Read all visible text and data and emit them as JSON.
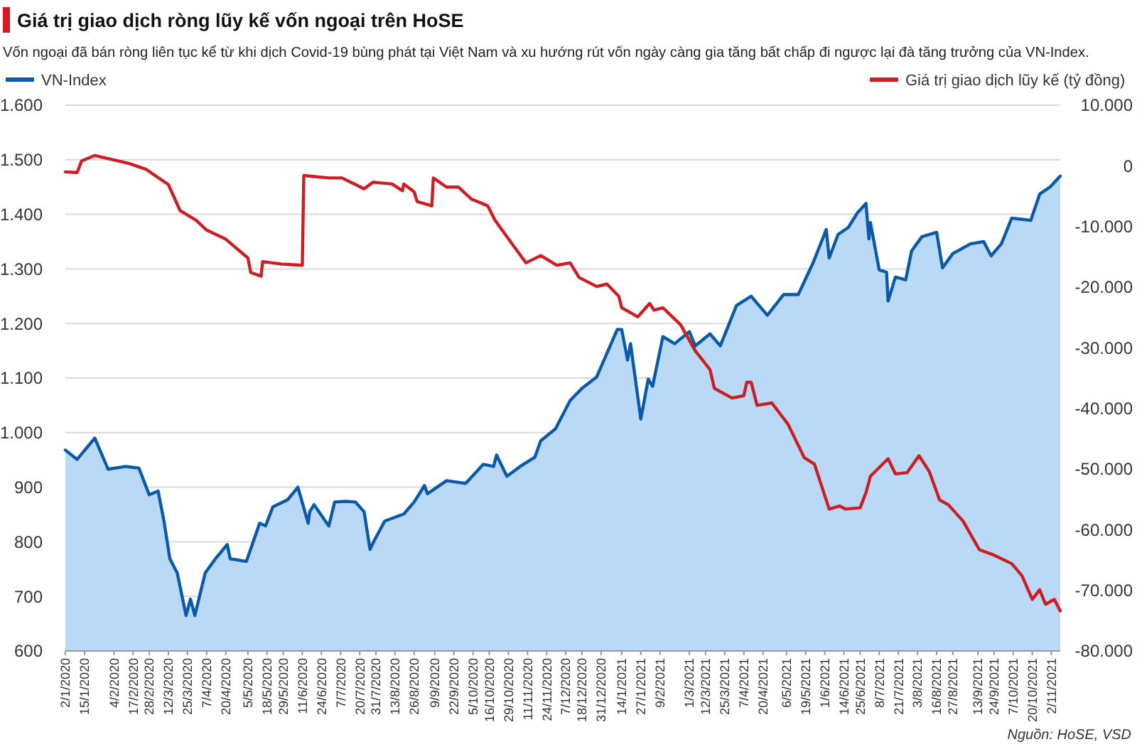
{
  "chart_data": {
    "type": "area",
    "title": "Giá trị giao dịch ròng lũy kế vốn ngoại trên HoSE",
    "subtitle": "Vốn ngoại đã bán ròng liên tục kể từ khi dịch Covid-19 bùng phát tại Việt Nam và xu hướng rút vốn ngày càng gia tăng bất chấp đi ngược lại đà tăng trưởng của VN-Index.",
    "annotations": [
      "Nguồn: HoSE, VSD"
    ],
    "xlim": [
      "2020-01-02",
      "2021-11-08"
    ],
    "xticks": [
      {
        "value": "2020-01-02",
        "label": "2/1/2020"
      },
      {
        "value": "2020-01-15",
        "label": "15/1/2020"
      },
      {
        "value": "2020-02-04",
        "label": "4/2/2020"
      },
      {
        "value": "2020-02-17",
        "label": "17/2/2020"
      },
      {
        "value": "2020-02-28",
        "label": "28/2/2020"
      },
      {
        "value": "2020-03-12",
        "label": "12/3/2020"
      },
      {
        "value": "2020-03-25",
        "label": "25/3/2020"
      },
      {
        "value": "2020-04-07",
        "label": "7/4/2020"
      },
      {
        "value": "2020-04-20",
        "label": "20/4/2020"
      },
      {
        "value": "2020-05-05",
        "label": "5/5/2020"
      },
      {
        "value": "2020-05-18",
        "label": "18/5/2020"
      },
      {
        "value": "2020-05-29",
        "label": "29/5/2020"
      },
      {
        "value": "2020-06-11",
        "label": "11/6/2020"
      },
      {
        "value": "2020-06-24",
        "label": "24/6/2020"
      },
      {
        "value": "2020-07-07",
        "label": "7/7/2020"
      },
      {
        "value": "2020-07-20",
        "label": "20/7/2020"
      },
      {
        "value": "2020-07-31",
        "label": "31/7/2020"
      },
      {
        "value": "2020-08-13",
        "label": "13/8/2020"
      },
      {
        "value": "2020-08-26",
        "label": "26/8/2020"
      },
      {
        "value": "2020-09-09",
        "label": "9/9/2020"
      },
      {
        "value": "2020-09-22",
        "label": "22/9/2020"
      },
      {
        "value": "2020-10-05",
        "label": "5/10/2020"
      },
      {
        "value": "2020-10-16",
        "label": "16/10/2020"
      },
      {
        "value": "2020-10-29",
        "label": "29/10/2020"
      },
      {
        "value": "2020-11-11",
        "label": "11/11/2020"
      },
      {
        "value": "2020-11-24",
        "label": "24/11/2020"
      },
      {
        "value": "2020-12-07",
        "label": "7/12/2020"
      },
      {
        "value": "2020-12-18",
        "label": "18/12/2020"
      },
      {
        "value": "2020-12-31",
        "label": "31/12/2020"
      },
      {
        "value": "2021-01-14",
        "label": "14/1/2021"
      },
      {
        "value": "2021-01-27",
        "label": "27/1/2021"
      },
      {
        "value": "2021-02-09",
        "label": "9/2/2021"
      },
      {
        "value": "2021-03-01",
        "label": "1/3/2021"
      },
      {
        "value": "2021-03-12",
        "label": "12/3/2021"
      },
      {
        "value": "2021-03-25",
        "label": "25/3/2021"
      },
      {
        "value": "2021-04-07",
        "label": "7/4/2021"
      },
      {
        "value": "2021-04-20",
        "label": "20/4/2021"
      },
      {
        "value": "2021-05-06",
        "label": "6/5/2021"
      },
      {
        "value": "2021-05-19",
        "label": "19/5/2021"
      },
      {
        "value": "2021-06-01",
        "label": "1/6/2021"
      },
      {
        "value": "2021-06-14",
        "label": "14/6/2021"
      },
      {
        "value": "2021-06-25",
        "label": "25/6/2021"
      },
      {
        "value": "2021-07-08",
        "label": "8/7/2021"
      },
      {
        "value": "2021-07-21",
        "label": "21/7/2021"
      },
      {
        "value": "2021-08-03",
        "label": "3/8/2021"
      },
      {
        "value": "2021-08-16",
        "label": "16/8/2021"
      },
      {
        "value": "2021-08-27",
        "label": "27/8/2021"
      },
      {
        "value": "2021-09-13",
        "label": "13/9/2021"
      },
      {
        "value": "2021-09-24",
        "label": "24/9/2021"
      },
      {
        "value": "2021-10-07",
        "label": "7/10/2021"
      },
      {
        "value": "2021-10-20",
        "label": "20/10/2021"
      },
      {
        "value": "2021-11-02",
        "label": "2/11/2021"
      }
    ],
    "ylim": [
      600,
      1600
    ],
    "yticks": [
      {
        "value": 600,
        "label": "600"
      },
      {
        "value": 700,
        "label": "700"
      },
      {
        "value": 800,
        "label": "800"
      },
      {
        "value": 900,
        "label": "900"
      },
      {
        "value": 1000,
        "label": "1.000"
      },
      {
        "value": 1100,
        "label": "1.100"
      },
      {
        "value": 1200,
        "label": "1.200"
      },
      {
        "value": 1300,
        "label": "1.300"
      },
      {
        "value": 1400,
        "label": "1.400"
      },
      {
        "value": 1500,
        "label": "1.500"
      },
      {
        "value": 1600,
        "label": "1.600"
      }
    ],
    "y2lim": [
      -80000,
      10000
    ],
    "y2ticks": [
      {
        "value": -80000,
        "label": "-80.000"
      },
      {
        "value": -70000,
        "label": "-70.000"
      },
      {
        "value": -60000,
        "label": "-60.000"
      },
      {
        "value": -50000,
        "label": "-50.000"
      },
      {
        "value": -40000,
        "label": "-40.000"
      },
      {
        "value": -30000,
        "label": "-30.000"
      },
      {
        "value": -20000,
        "label": "-20.000"
      },
      {
        "value": -10000,
        "label": "-10.000"
      },
      {
        "value": 0,
        "label": "0"
      },
      {
        "value": 10000,
        "label": "10.000"
      }
    ],
    "grid": "y",
    "legend": "top",
    "series": [
      {
        "name": "VN-Index",
        "color": "#0b5aa8",
        "x": [
          "2020-01-02",
          "2020-01-10",
          "2020-01-22",
          "2020-01-31",
          "2020-02-12",
          "2020-02-21",
          "2020-02-28",
          "2020-03-05",
          "2020-03-09",
          "2020-03-13",
          "2020-03-18",
          "2020-03-24",
          "2020-03-27",
          "2020-03-30",
          "2020-04-06",
          "2020-04-13",
          "2020-04-21",
          "2020-04-23",
          "2020-05-04",
          "2020-05-13",
          "2020-05-17",
          "2020-05-22",
          "2020-06-01",
          "2020-06-08",
          "2020-06-15",
          "2020-06-16",
          "2020-06-19",
          "2020-06-29",
          "2020-07-03",
          "2020-07-10",
          "2020-07-17",
          "2020-07-23",
          "2020-07-27",
          "2020-07-30",
          "2020-08-06",
          "2020-08-19",
          "2020-08-26",
          "2020-09-02",
          "2020-09-04",
          "2020-09-17",
          "2020-09-30",
          "2020-10-12",
          "2020-10-19",
          "2020-10-21",
          "2020-10-28",
          "2020-11-06",
          "2020-11-16",
          "2020-11-20",
          "2020-11-30",
          "2020-12-10",
          "2020-12-18",
          "2020-12-28",
          "2021-01-11",
          "2021-01-14",
          "2021-01-18",
          "2021-01-20",
          "2021-01-27",
          "2021-02-01",
          "2021-02-04",
          "2021-02-11",
          "2021-02-19",
          "2021-03-01",
          "2021-03-05",
          "2021-03-15",
          "2021-03-22",
          "2021-04-02",
          "2021-04-12",
          "2021-04-23",
          "2021-05-04",
          "2021-05-14",
          "2021-05-24",
          "2021-06-02",
          "2021-06-04",
          "2021-06-10",
          "2021-06-17",
          "2021-06-23",
          "2021-06-29",
          "2021-07-01",
          "2021-07-02",
          "2021-07-08",
          "2021-07-13",
          "2021-07-14",
          "2021-07-19",
          "2021-07-26",
          "2021-07-30",
          "2021-08-06",
          "2021-08-16",
          "2021-08-20",
          "2021-08-27",
          "2021-09-08",
          "2021-09-17",
          "2021-09-22",
          "2021-09-29",
          "2021-10-06",
          "2021-10-19",
          "2021-10-25",
          "2021-11-01",
          "2021-11-08"
        ],
        "values": [
          968,
          951,
          990,
          933,
          938,
          935,
          886,
          893,
          838,
          769,
          743,
          665,
          695,
          665,
          743,
          769,
          795,
          769,
          764,
          834,
          829,
          864,
          877,
          900,
          834,
          855,
          868,
          829,
          873,
          874,
          873,
          855,
          786,
          803,
          838,
          851,
          873,
          903,
          888,
          912,
          907,
          942,
          938,
          959,
          920,
          938,
          955,
          985,
          1007,
          1059,
          1081,
          1102,
          1189,
          1189,
          1133,
          1163,
          1025,
          1098,
          1085,
          1176,
          1163,
          1185,
          1159,
          1181,
          1159,
          1233,
          1250,
          1215,
          1253,
          1253,
          1311,
          1372,
          1320,
          1363,
          1376,
          1402,
          1420,
          1355,
          1385,
          1298,
          1294,
          1241,
          1285,
          1280,
          1333,
          1359,
          1367,
          1302,
          1328,
          1346,
          1350,
          1324,
          1346,
          1393,
          1389,
          1437,
          1450,
          1470
        ]
      },
      {
        "name": "Giá trị giao dịch lũy kế (tỷ đồng)",
        "type": "line",
        "axis": "y2",
        "color": "#cc1f24",
        "x": [
          "2020-01-02",
          "2020-01-10",
          "2020-01-13",
          "2020-01-22",
          "2020-02-14",
          "2020-02-26",
          "2020-03-12",
          "2020-03-20",
          "2020-03-31",
          "2020-04-07",
          "2020-04-20",
          "2020-05-05",
          "2020-05-07",
          "2020-05-14",
          "2020-05-15",
          "2020-05-28",
          "2020-06-11",
          "2020-06-12",
          "2020-06-29",
          "2020-07-08",
          "2020-07-23",
          "2020-07-29",
          "2020-08-11",
          "2020-08-18",
          "2020-08-19",
          "2020-08-26",
          "2020-08-28",
          "2020-09-07",
          "2020-09-08",
          "2020-09-17",
          "2020-09-25",
          "2020-10-04",
          "2020-10-15",
          "2020-10-20",
          "2020-11-03",
          "2020-11-10",
          "2020-11-20",
          "2020-12-01",
          "2020-12-10",
          "2020-12-16",
          "2020-12-28",
          "2021-01-04",
          "2021-01-12",
          "2021-01-14",
          "2021-01-25",
          "2021-02-02",
          "2021-02-05",
          "2021-02-11",
          "2021-02-23",
          "2021-03-05",
          "2021-03-15",
          "2021-03-18",
          "2021-03-30",
          "2021-04-07",
          "2021-04-09",
          "2021-04-12",
          "2021-04-16",
          "2021-04-26",
          "2021-05-07",
          "2021-05-18",
          "2021-05-25",
          "2021-06-04",
          "2021-06-11",
          "2021-06-15",
          "2021-06-25",
          "2021-06-29",
          "2021-07-02",
          "2021-07-14",
          "2021-07-19",
          "2021-07-27",
          "2021-08-04",
          "2021-08-11",
          "2021-08-18",
          "2021-08-24",
          "2021-09-03",
          "2021-09-14",
          "2021-09-23",
          "2021-10-06",
          "2021-10-13",
          "2021-10-20",
          "2021-10-25",
          "2021-10-29",
          "2021-11-04",
          "2021-11-08"
        ],
        "values": [
          -1000,
          -1100,
          800,
          1700,
          400,
          -600,
          -3100,
          -7400,
          -9000,
          -10600,
          -12100,
          -15200,
          -17600,
          -18200,
          -15800,
          -16200,
          -16400,
          -1600,
          -2000,
          -2000,
          -3800,
          -2700,
          -3000,
          -4100,
          -3000,
          -4300,
          -5900,
          -6600,
          -2000,
          -3500,
          -3500,
          -5500,
          -6600,
          -9000,
          -13700,
          -16000,
          -14800,
          -16400,
          -16000,
          -18400,
          -19900,
          -19500,
          -21500,
          -23400,
          -24900,
          -22700,
          -23800,
          -23400,
          -26200,
          -30500,
          -33600,
          -36700,
          -38300,
          -37900,
          -35700,
          -35700,
          -39500,
          -39100,
          -42600,
          -48100,
          -49200,
          -56600,
          -56100,
          -56600,
          -56400,
          -53900,
          -51200,
          -48300,
          -50800,
          -50600,
          -47800,
          -50400,
          -55100,
          -55900,
          -58600,
          -63300,
          -64100,
          -65600,
          -67600,
          -71500,
          -69900,
          -72300,
          -71500,
          -73400
        ]
      }
    ]
  }
}
